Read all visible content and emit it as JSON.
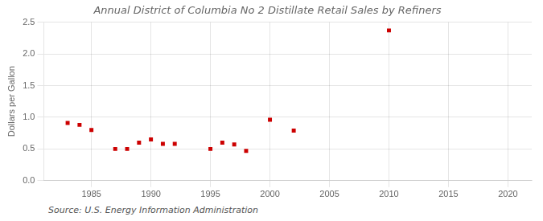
{
  "chart_data": {
    "type": "scatter",
    "title": "Annual District of Columbia No 2 Distillate Retail Sales by Refiners",
    "ylabel": "Dollars per Gallon",
    "annotations": [
      "Source: U.S. Energy Information Administration"
    ],
    "x": [
      1983,
      1984,
      1985,
      1987,
      1988,
      1989,
      1990,
      1991,
      1992,
      1995,
      1996,
      1997,
      1998,
      2000,
      2002,
      2010
    ],
    "values": [
      0.91,
      0.88,
      0.8,
      0.5,
      0.5,
      0.6,
      0.65,
      0.58,
      0.58,
      0.5,
      0.6,
      0.57,
      0.47,
      0.96,
      0.79,
      2.37
    ],
    "color": "#cc0000",
    "marker": "square",
    "xlim": [
      1981,
      2022
    ],
    "ylim": [
      0.0,
      2.5
    ],
    "xticks": [
      1985,
      1990,
      1995,
      2000,
      2005,
      2010,
      2015,
      2020
    ],
    "yticks": [
      {
        "value": 0.0,
        "label": "0.0"
      },
      0.5,
      {
        "value": 1.0,
        "label": "1.0"
      },
      1.5,
      {
        "value": 2.0,
        "label": "2.0"
      },
      2.5
    ],
    "grid": true
  }
}
